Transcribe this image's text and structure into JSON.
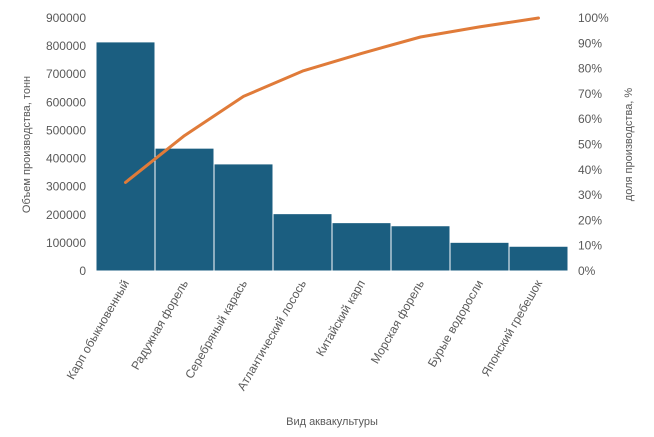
{
  "chart_data": {
    "type": "bar",
    "categories": [
      "Карп обыкновенный",
      "Радужная форель",
      "Серебряный карась",
      "Атлантический лосось",
      "Китайский карп",
      "Морская форель",
      "Бурые водоросли",
      "Японский гребешок"
    ],
    "series": [
      {
        "type": "bar",
        "axis": "left",
        "color": "#1b5e80",
        "values": [
          815000,
          437000,
          381000,
          204000,
          172000,
          161000,
          102000,
          88000
        ]
      },
      {
        "type": "line",
        "axis": "right",
        "color": "#e07b39",
        "values": [
          0.35,
          0.535,
          0.69,
          0.79,
          0.86,
          0.925,
          0.965,
          1.0
        ]
      }
    ],
    "xlabel": "Вид аквакультуры",
    "ylabel": "Объем производства, тонн",
    "y2label": "доля производства, %",
    "ylim": [
      0,
      900000
    ],
    "y2lim": [
      0,
      1
    ],
    "yticks": [
      "0",
      "100000",
      "200000",
      "300000",
      "400000",
      "500000",
      "600000",
      "700000",
      "800000",
      "900000"
    ],
    "y2ticks": [
      "0%",
      "10%",
      "20%",
      "30%",
      "40%",
      "50%",
      "60%",
      "70%",
      "80%",
      "90%",
      "100%"
    ],
    "grid": false,
    "legend": "none"
  }
}
